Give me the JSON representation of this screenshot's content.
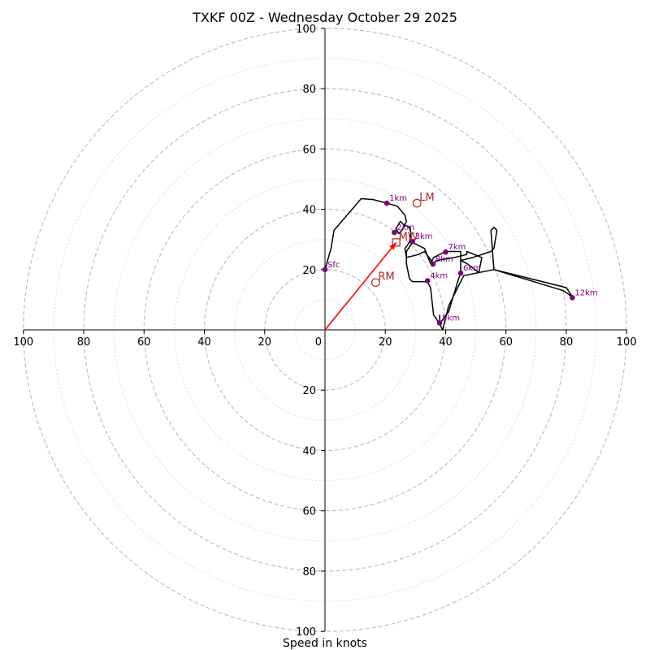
{
  "chart_data": {
    "type": "hodograph",
    "title": "TXKF 00Z - Wednesday October 29 2025",
    "xlabel": "Speed in knots",
    "max_speed": 100,
    "major_rings": [
      20,
      40,
      60,
      80,
      100
    ],
    "minor_rings": [
      10,
      30,
      50,
      70,
      90
    ],
    "tick_values": [
      20,
      40,
      60,
      80,
      100
    ],
    "tick_labels": [
      "20",
      "40",
      "60",
      "80",
      "100"
    ],
    "hodograph_trace": [
      [
        0,
        20
      ],
      [
        2,
        27
      ],
      [
        3,
        33
      ],
      [
        12,
        43.5
      ],
      [
        16,
        43.2
      ],
      [
        20.5,
        42
      ],
      [
        24,
        41
      ],
      [
        26.5,
        38
      ],
      [
        27,
        36
      ],
      [
        25.5,
        33
      ],
      [
        24.5,
        32
      ],
      [
        23.5,
        33.5
      ],
      [
        25,
        36
      ],
      [
        26,
        35
      ],
      [
        28,
        34
      ],
      [
        28.5,
        32
      ],
      [
        28,
        29
      ],
      [
        26.5,
        27
      ],
      [
        27,
        24
      ],
      [
        31,
        25
      ],
      [
        33,
        26
      ],
      [
        36,
        22
      ],
      [
        37,
        23
      ],
      [
        43,
        24
      ],
      [
        47,
        25
      ],
      [
        47,
        26
      ],
      [
        52,
        24
      ],
      [
        51,
        19
      ],
      [
        47,
        22
      ],
      [
        45,
        23
      ],
      [
        49,
        24
      ],
      [
        55,
        26
      ],
      [
        56,
        27
      ],
      [
        57,
        33
      ],
      [
        56,
        34
      ],
      [
        55,
        33
      ],
      [
        56,
        20
      ],
      [
        80,
        14
      ],
      [
        82,
        11
      ],
      [
        79,
        13
      ],
      [
        56,
        20
      ],
      [
        46,
        18
      ],
      [
        45,
        16
      ],
      [
        41,
        8
      ],
      [
        39,
        0
      ],
      [
        38,
        2
      ],
      [
        36,
        5
      ],
      [
        35,
        14
      ],
      [
        34,
        16
      ],
      [
        29,
        16
      ],
      [
        28,
        17
      ],
      [
        27,
        22
      ],
      [
        27,
        26
      ],
      [
        29,
        29
      ],
      [
        33,
        27
      ],
      [
        35,
        22
      ],
      [
        36,
        24
      ],
      [
        40,
        26
      ],
      [
        45,
        26
      ],
      [
        45,
        19
      ],
      [
        44,
        16
      ],
      [
        41,
        6
      ],
      [
        38,
        2
      ],
      [
        38,
        5
      ]
    ],
    "height_markers": [
      {
        "label": "Sfc",
        "u": 0,
        "v": 20
      },
      {
        "label": "1km",
        "u": 20.5,
        "v": 42
      },
      {
        "label": "2km",
        "u": 23,
        "v": 32.3
      },
      {
        "label": "3km",
        "u": 29,
        "v": 29.3
      },
      {
        "label": "4km",
        "u": 34,
        "v": 16.3
      },
      {
        "label": "5km",
        "u": 38,
        "v": 2.3
      },
      {
        "label": "6km",
        "u": 45,
        "v": 18.8
      },
      {
        "label": "7km",
        "u": 40,
        "v": 25.8
      },
      {
        "label": "8km",
        "u": 35.8,
        "v": 21.8
      },
      {
        "label": "12km",
        "u": 82,
        "v": 10.7
      }
    ],
    "storm_motion": [
      {
        "label": "LM",
        "u": 30.5,
        "v": 42,
        "symbol": "circle"
      },
      {
        "label": "RM",
        "u": 16.8,
        "v": 15.7,
        "symbol": "circle"
      },
      {
        "label": "MW",
        "u": 23.6,
        "v": 29,
        "symbol": "square"
      }
    ],
    "shear_vector": {
      "from": [
        0,
        0
      ],
      "to": [
        23.6,
        29
      ]
    },
    "colors": {
      "trace": "#000000",
      "markers": "#800080",
      "storm_motion": "#b22222",
      "shear_vector": "#ff0000",
      "major_ring": "#bbbbbb",
      "minor_ring": "#d3d3d3",
      "axis": "#000000"
    }
  }
}
